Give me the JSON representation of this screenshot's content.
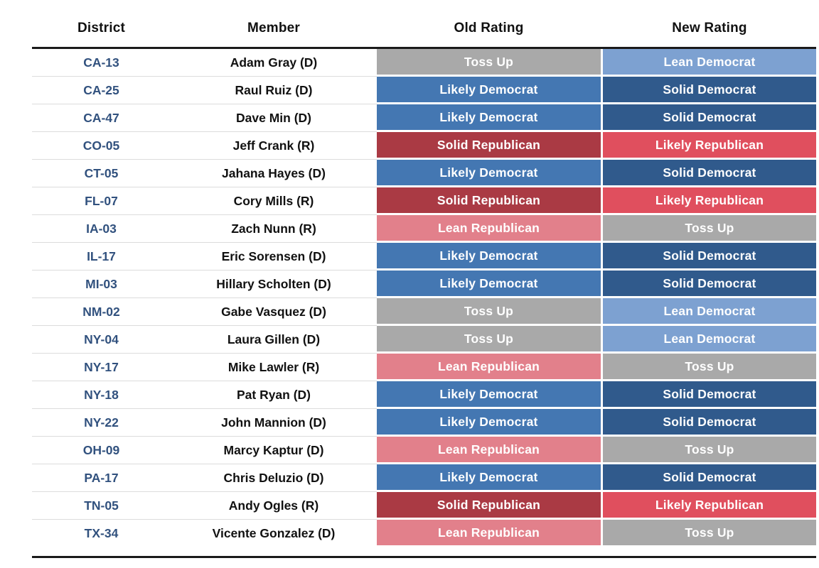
{
  "chart_data": {
    "type": "table",
    "columns": [
      "District",
      "Member",
      "Old Rating",
      "New Rating"
    ],
    "rows": [
      {
        "district": "CA-13",
        "member": "Adam Gray (D)",
        "old_rating": "Toss Up",
        "new_rating": "Lean Democrat"
      },
      {
        "district": "CA-25",
        "member": "Raul Ruiz (D)",
        "old_rating": "Likely Democrat",
        "new_rating": "Solid Democrat"
      },
      {
        "district": "CA-47",
        "member": "Dave Min (D)",
        "old_rating": "Likely Democrat",
        "new_rating": "Solid Democrat"
      },
      {
        "district": "CO-05",
        "member": "Jeff Crank (R)",
        "old_rating": "Solid Republican",
        "new_rating": "Likely Republican"
      },
      {
        "district": "CT-05",
        "member": "Jahana Hayes (D)",
        "old_rating": "Likely Democrat",
        "new_rating": "Solid Democrat"
      },
      {
        "district": "FL-07",
        "member": "Cory Mills (R)",
        "old_rating": "Solid Republican",
        "new_rating": "Likely Republican"
      },
      {
        "district": "IA-03",
        "member": "Zach Nunn (R)",
        "old_rating": "Lean Republican",
        "new_rating": "Toss Up"
      },
      {
        "district": "IL-17",
        "member": "Eric Sorensen (D)",
        "old_rating": "Likely Democrat",
        "new_rating": "Solid Democrat"
      },
      {
        "district": "MI-03",
        "member": "Hillary Scholten (D)",
        "old_rating": "Likely Democrat",
        "new_rating": "Solid Democrat"
      },
      {
        "district": "NM-02",
        "member": "Gabe Vasquez (D)",
        "old_rating": "Toss Up",
        "new_rating": "Lean Democrat"
      },
      {
        "district": "NY-04",
        "member": "Laura Gillen (D)",
        "old_rating": "Toss Up",
        "new_rating": "Lean Democrat"
      },
      {
        "district": "NY-17",
        "member": "Mike Lawler (R)",
        "old_rating": "Lean Republican",
        "new_rating": "Toss Up"
      },
      {
        "district": "NY-18",
        "member": "Pat Ryan (D)",
        "old_rating": "Likely Democrat",
        "new_rating": "Solid Democrat"
      },
      {
        "district": "NY-22",
        "member": "John Mannion (D)",
        "old_rating": "Likely Democrat",
        "new_rating": "Solid Democrat"
      },
      {
        "district": "OH-09",
        "member": "Marcy Kaptur (D)",
        "old_rating": "Lean Republican",
        "new_rating": "Toss Up"
      },
      {
        "district": "PA-17",
        "member": "Chris Deluzio (D)",
        "old_rating": "Likely Democrat",
        "new_rating": "Solid Democrat"
      },
      {
        "district": "TN-05",
        "member": "Andy Ogles (R)",
        "old_rating": "Solid Republican",
        "new_rating": "Likely Republican"
      },
      {
        "district": "TX-34",
        "member": "Vicente Gonzalez (D)",
        "old_rating": "Lean Republican",
        "new_rating": "Toss Up"
      }
    ]
  },
  "rating_colors": {
    "Toss Up": "#a9a9a9",
    "Lean Democrat": "#7da1d1",
    "Likely Democrat": "#4477b2",
    "Solid Democrat": "#305a8c",
    "Lean Republican": "#e2808b",
    "Likely Republican": "#e04f5e",
    "Solid Republican": "#aa3a44"
  },
  "style_colors": {
    "district_text": "#31517e",
    "header_text": "#111111",
    "rule": "#1a1a1a",
    "row_separator": "#dcdcdc",
    "badge_text": "#ffffff"
  }
}
